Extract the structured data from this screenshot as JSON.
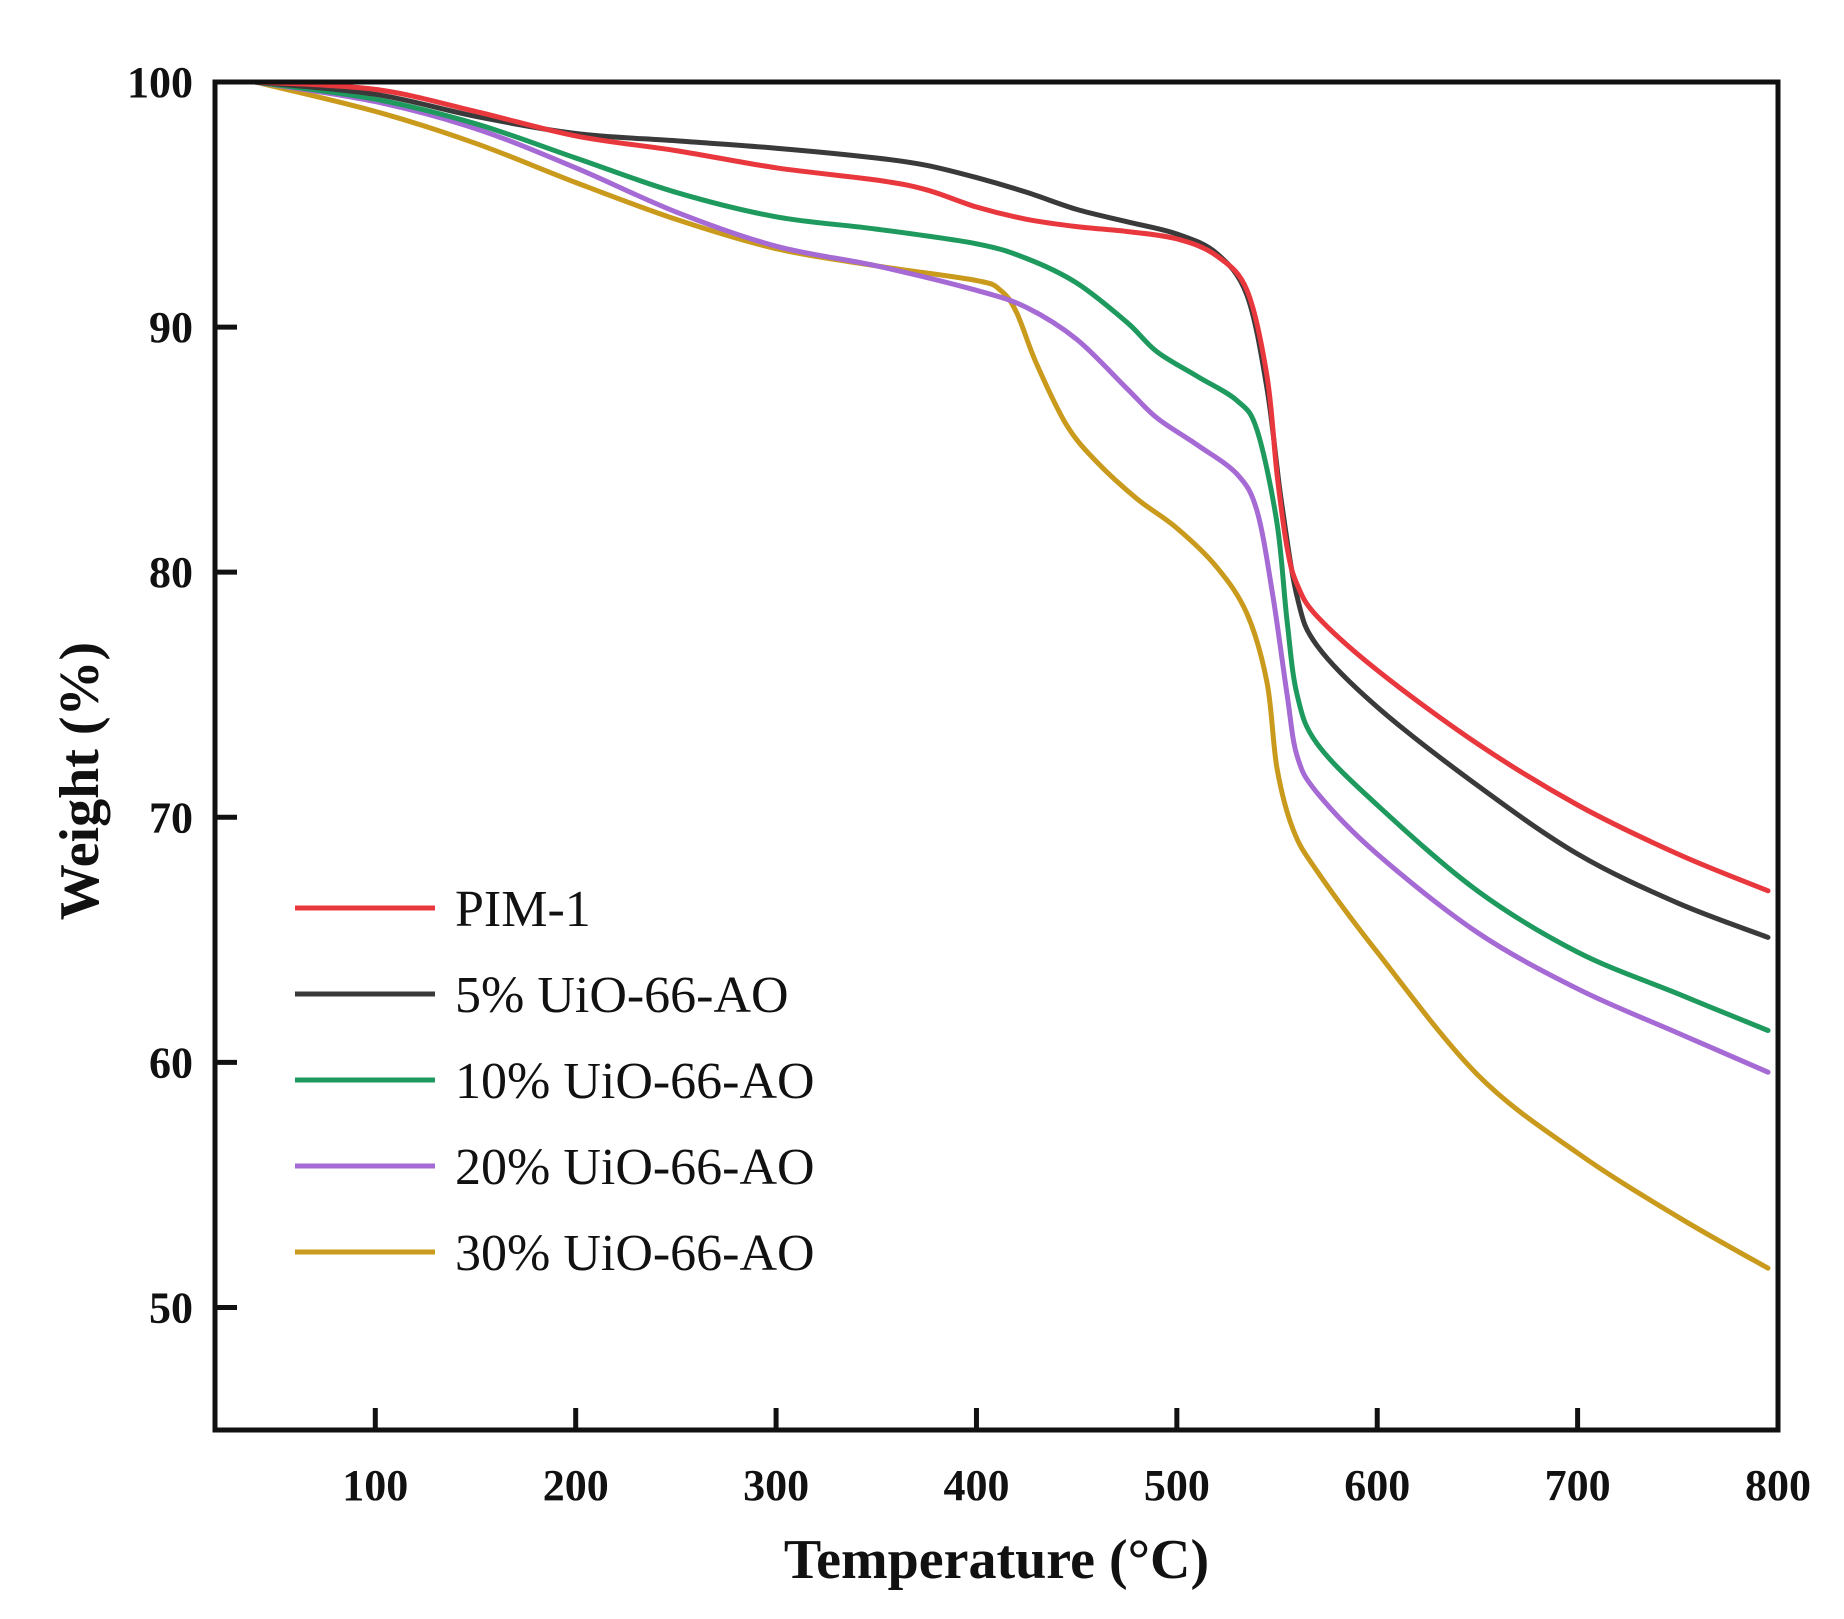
{
  "chart_data": {
    "type": "line",
    "title": "",
    "xlabel": "Temperature (°C)",
    "ylabel": "Weight (%)",
    "xlim": [
      20,
      800
    ],
    "ylim": [
      45,
      100
    ],
    "xticks": [
      100,
      200,
      300,
      400,
      500,
      600,
      700,
      800
    ],
    "yticks": [
      50,
      60,
      70,
      80,
      90,
      100
    ],
    "grid": false,
    "legend_position": "lower-left",
    "series": [
      {
        "name": "PIM-1",
        "color": "#e8383d",
        "points": [
          [
            40,
            100
          ],
          [
            100,
            99.7
          ],
          [
            150,
            98.8
          ],
          [
            200,
            97.8
          ],
          [
            250,
            97.2
          ],
          [
            300,
            96.5
          ],
          [
            350,
            96.0
          ],
          [
            375,
            95.6
          ],
          [
            400,
            94.9
          ],
          [
            425,
            94.4
          ],
          [
            450,
            94.1
          ],
          [
            475,
            93.9
          ],
          [
            500,
            93.6
          ],
          [
            520,
            92.9
          ],
          [
            535,
            91.5
          ],
          [
            545,
            88
          ],
          [
            550,
            84
          ],
          [
            555,
            81
          ],
          [
            560,
            79.5
          ],
          [
            570,
            78.2
          ],
          [
            600,
            76
          ],
          [
            650,
            73
          ],
          [
            700,
            70.5
          ],
          [
            750,
            68.5
          ],
          [
            795,
            67
          ]
        ]
      },
      {
        "name": "5% UiO-66-AO",
        "color": "#3a3a3a",
        "points": [
          [
            40,
            100
          ],
          [
            100,
            99.5
          ],
          [
            150,
            98.6
          ],
          [
            200,
            97.9
          ],
          [
            250,
            97.6
          ],
          [
            300,
            97.3
          ],
          [
            350,
            96.9
          ],
          [
            375,
            96.6
          ],
          [
            400,
            96.1
          ],
          [
            425,
            95.5
          ],
          [
            450,
            94.8
          ],
          [
            475,
            94.3
          ],
          [
            500,
            93.8
          ],
          [
            520,
            93.0
          ],
          [
            535,
            91.3
          ],
          [
            545,
            87.5
          ],
          [
            552,
            83
          ],
          [
            560,
            79
          ],
          [
            570,
            77
          ],
          [
            600,
            74.5
          ],
          [
            650,
            71.3
          ],
          [
            700,
            68.5
          ],
          [
            750,
            66.5
          ],
          [
            795,
            65.1
          ]
        ]
      },
      {
        "name": "10% UiO-66-AO",
        "color": "#1f9a5e",
        "points": [
          [
            40,
            100
          ],
          [
            100,
            99.3
          ],
          [
            150,
            98.3
          ],
          [
            200,
            96.9
          ],
          [
            250,
            95.5
          ],
          [
            300,
            94.5
          ],
          [
            350,
            94.0
          ],
          [
            400,
            93.4
          ],
          [
            425,
            92.8
          ],
          [
            450,
            91.8
          ],
          [
            475,
            90.2
          ],
          [
            490,
            89.0
          ],
          [
            510,
            88.0
          ],
          [
            530,
            87.0
          ],
          [
            540,
            85.8
          ],
          [
            550,
            82
          ],
          [
            555,
            78
          ],
          [
            560,
            75
          ],
          [
            570,
            73
          ],
          [
            600,
            70.5
          ],
          [
            650,
            67
          ],
          [
            700,
            64.5
          ],
          [
            750,
            62.8
          ],
          [
            795,
            61.3
          ]
        ]
      },
      {
        "name": "20% UiO-66-AO",
        "color": "#a56ad4",
        "points": [
          [
            40,
            100
          ],
          [
            100,
            99.2
          ],
          [
            150,
            98.1
          ],
          [
            200,
            96.5
          ],
          [
            250,
            94.7
          ],
          [
            300,
            93.3
          ],
          [
            350,
            92.5
          ],
          [
            400,
            91.5
          ],
          [
            425,
            90.8
          ],
          [
            450,
            89.5
          ],
          [
            475,
            87.5
          ],
          [
            490,
            86.3
          ],
          [
            510,
            85.2
          ],
          [
            530,
            84.0
          ],
          [
            540,
            82.5
          ],
          [
            548,
            79
          ],
          [
            555,
            75
          ],
          [
            560,
            72.5
          ],
          [
            570,
            71
          ],
          [
            600,
            68.5
          ],
          [
            650,
            65.3
          ],
          [
            700,
            63
          ],
          [
            750,
            61.2
          ],
          [
            795,
            59.6
          ]
        ]
      },
      {
        "name": "30% UiO-66-AO",
        "color": "#c99a1c",
        "points": [
          [
            40,
            100
          ],
          [
            100,
            98.8
          ],
          [
            150,
            97.5
          ],
          [
            200,
            95.9
          ],
          [
            250,
            94.4
          ],
          [
            300,
            93.2
          ],
          [
            350,
            92.5
          ],
          [
            400,
            91.9
          ],
          [
            412,
            91.5
          ],
          [
            420,
            90.6
          ],
          [
            430,
            88.5
          ],
          [
            445,
            86.0
          ],
          [
            460,
            84.5
          ],
          [
            480,
            83.0
          ],
          [
            500,
            81.8
          ],
          [
            520,
            80.2
          ],
          [
            535,
            78.3
          ],
          [
            545,
            75.5
          ],
          [
            550,
            72
          ],
          [
            558,
            69.5
          ],
          [
            570,
            67.8
          ],
          [
            600,
            64.5
          ],
          [
            650,
            59.5
          ],
          [
            700,
            56.3
          ],
          [
            750,
            53.7
          ],
          [
            795,
            51.6
          ]
        ]
      }
    ]
  }
}
